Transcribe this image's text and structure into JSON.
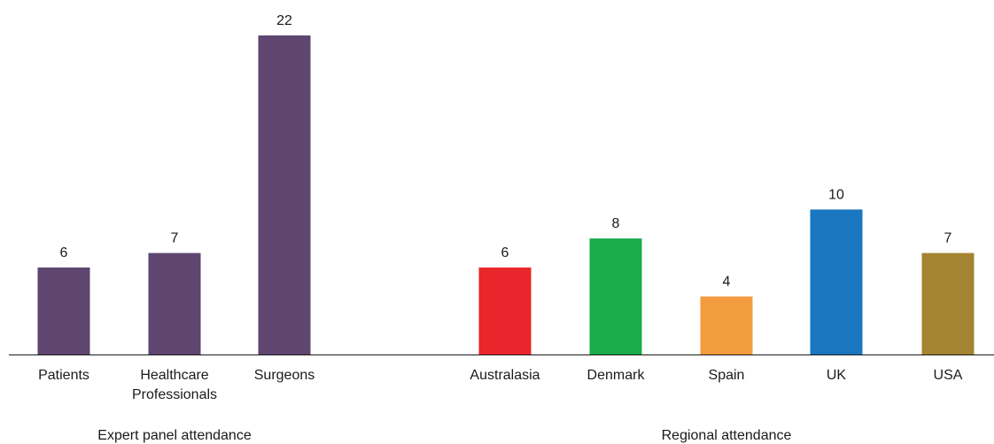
{
  "chart_data": [
    {
      "type": "bar",
      "xlabel": "Expert panel attendance",
      "ylabel": "",
      "ylim": [
        0,
        22
      ],
      "grid": false,
      "categories": [
        {
          "label_lines": [
            "Patients"
          ],
          "value": 6,
          "color": "#5e4670"
        },
        {
          "label_lines": [
            "Healthcare",
            "Professionals"
          ],
          "value": 7,
          "color": "#5e4670"
        },
        {
          "label_lines": [
            "Surgeons"
          ],
          "value": 22,
          "color": "#5e4670"
        }
      ]
    },
    {
      "type": "bar",
      "xlabel": "Regional attendance",
      "ylabel": "",
      "ylim": [
        0,
        22
      ],
      "grid": false,
      "categories": [
        {
          "label_lines": [
            "Australasia"
          ],
          "value": 6,
          "color": "#e8262b"
        },
        {
          "label_lines": [
            "Denmark"
          ],
          "value": 8,
          "color": "#1aab4b"
        },
        {
          "label_lines": [
            "Spain"
          ],
          "value": 4,
          "color": "#f29c3f"
        },
        {
          "label_lines": [
            "UK"
          ],
          "value": 10,
          "color": "#1a76bf"
        },
        {
          "label_lines": [
            "USA"
          ],
          "value": 7,
          "color": "#a48431"
        }
      ]
    }
  ]
}
